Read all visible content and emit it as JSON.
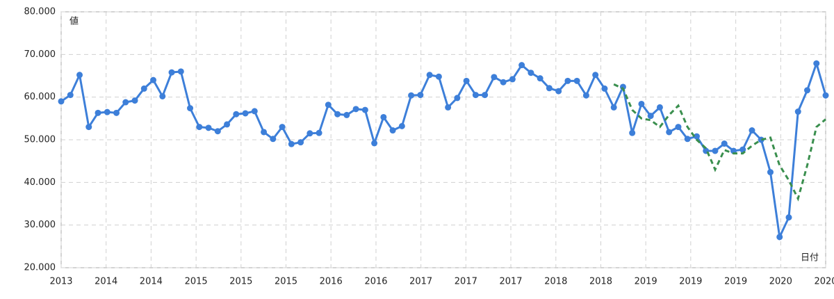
{
  "chart_data": {
    "type": "line",
    "y_label": "値",
    "x_label": "日付",
    "x": [
      0,
      1,
      2,
      3,
      4,
      5,
      6,
      7,
      8,
      9,
      10,
      11,
      12,
      13,
      14,
      15,
      16,
      17,
      18,
      19,
      20,
      21,
      22,
      23,
      24,
      25,
      26,
      27,
      28,
      29,
      30,
      31,
      32,
      33,
      34,
      35,
      36,
      37,
      38,
      39,
      40,
      41,
      42,
      43,
      44,
      45,
      46,
      47,
      48,
      49,
      50,
      51,
      52,
      53,
      54,
      55,
      56,
      57,
      58,
      59,
      60,
      61,
      62,
      63,
      64,
      65,
      66,
      67,
      68,
      69,
      70,
      71,
      72,
      73,
      74,
      75,
      76,
      77,
      78,
      79,
      80,
      81,
      82,
      83
    ],
    "series": [
      {
        "color": "#3d7fd9",
        "style": "solid",
        "markers": true,
        "values": [
          59.0,
          60.5,
          65.2,
          53.0,
          56.3,
          56.5,
          56.3,
          58.8,
          59.2,
          62.0,
          64.0,
          60.2,
          65.8,
          66.0,
          57.4,
          53.0,
          52.8,
          52.0,
          53.6,
          56.0,
          56.2,
          56.7,
          51.8,
          50.2,
          53.0,
          49.0,
          49.4,
          51.5,
          51.6,
          58.2,
          56.0,
          55.8,
          57.2,
          57.0,
          49.2,
          55.3,
          52.2,
          53.2,
          60.4,
          60.5,
          65.2,
          64.8,
          57.6,
          59.8,
          63.8,
          60.5,
          60.5,
          64.7,
          63.5,
          64.2,
          67.5,
          65.7,
          64.4,
          62.1,
          61.4,
          63.8,
          63.8,
          60.4,
          65.2,
          62.0,
          57.6,
          62.4,
          51.6,
          58.4,
          55.6,
          57.6,
          51.8,
          53.0,
          50.2,
          50.8,
          47.4,
          47.4,
          49.1,
          47.4,
          47.7,
          52.2,
          50.0,
          42.4,
          27.2,
          31.8,
          56.6,
          61.6,
          67.9,
          60.4
        ]
      },
      {
        "color": "#3a8f4e",
        "style": "dashed",
        "markers": false,
        "values": [
          null,
          null,
          null,
          null,
          null,
          null,
          null,
          null,
          null,
          null,
          null,
          null,
          null,
          null,
          null,
          null,
          null,
          null,
          null,
          null,
          null,
          null,
          null,
          null,
          null,
          null,
          null,
          null,
          null,
          null,
          null,
          null,
          null,
          null,
          null,
          null,
          null,
          null,
          null,
          null,
          null,
          null,
          null,
          null,
          null,
          null,
          null,
          null,
          null,
          null,
          null,
          null,
          null,
          null,
          null,
          null,
          null,
          null,
          null,
          null,
          63.0,
          62.0,
          57.0,
          55.0,
          54.6,
          53.0,
          55.8,
          58.0,
          53.0,
          50.0,
          48.0,
          43.0,
          47.6,
          46.8,
          46.8,
          48.6,
          50.0,
          50.5,
          44.0,
          40.5,
          36.2,
          44.0,
          53.0,
          54.8
        ]
      }
    ],
    "xlim": [
      0,
      83
    ],
    "xticks": [
      {
        "value": 0,
        "label": "2013"
      },
      {
        "value": 4.88,
        "label": "2014"
      },
      {
        "value": 9.76,
        "label": "2014"
      },
      {
        "value": 14.65,
        "label": "2015"
      },
      {
        "value": 19.53,
        "label": "2015"
      },
      {
        "value": 24.41,
        "label": "2015"
      },
      {
        "value": 29.29,
        "label": "2016"
      },
      {
        "value": 34.18,
        "label": "2016"
      },
      {
        "value": 39.06,
        "label": "2017"
      },
      {
        "value": 43.94,
        "label": "2017"
      },
      {
        "value": 48.82,
        "label": "2017"
      },
      {
        "value": 53.71,
        "label": "2018"
      },
      {
        "value": 58.59,
        "label": "2018"
      },
      {
        "value": 63.47,
        "label": "2019"
      },
      {
        "value": 68.35,
        "label": "2019"
      },
      {
        "value": 73.24,
        "label": "2019"
      },
      {
        "value": 78.12,
        "label": "2020"
      },
      {
        "value": 83,
        "label": "2020"
      }
    ],
    "ylim": [
      20,
      80
    ],
    "yticks": [
      {
        "value": 20,
        "label": "20.000"
      },
      {
        "value": 30,
        "label": "30.000"
      },
      {
        "value": 40,
        "label": "40.000"
      },
      {
        "value": 50,
        "label": "50.000"
      },
      {
        "value": 60,
        "label": "60.000"
      },
      {
        "value": 70,
        "label": "70.000"
      },
      {
        "value": 80,
        "label": "80.000"
      }
    ],
    "grid": true
  }
}
